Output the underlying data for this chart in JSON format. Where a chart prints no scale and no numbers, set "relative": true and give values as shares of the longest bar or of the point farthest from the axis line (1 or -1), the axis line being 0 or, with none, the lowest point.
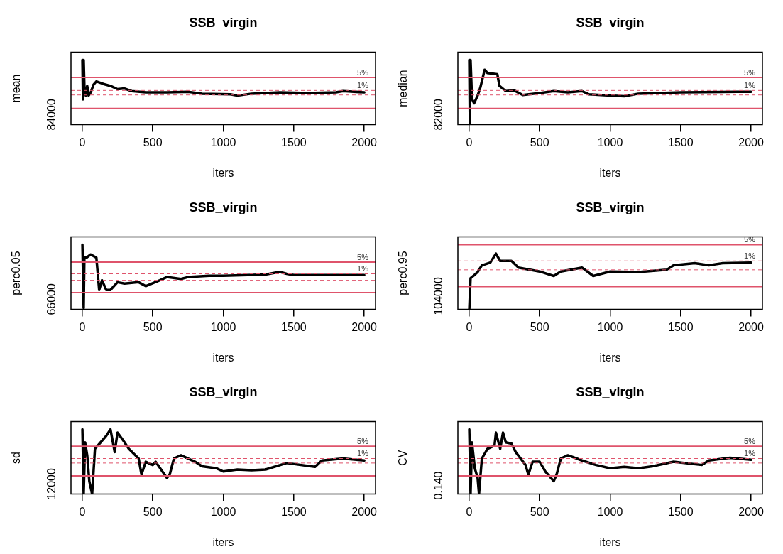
{
  "chart_data": [
    {
      "type": "line",
      "title": "SSB_virgin",
      "xlabel": "iters",
      "ylabel": "mean",
      "relative": true,
      "legend": false,
      "marker": "none",
      "line_style": "solid",
      "xlim": [
        -80,
        2080
      ],
      "xticks": [
        0,
        500,
        1000,
        1500,
        2000
      ],
      "annotations": [
        "84000",
        "5%",
        "1%"
      ],
      "x": [
        1,
        5,
        10,
        15,
        25,
        35,
        45,
        60,
        80,
        100,
        150,
        200,
        250,
        300,
        350,
        450,
        600,
        750,
        850,
        1050,
        1100,
        1200,
        1400,
        1600,
        1800,
        1850,
        2000
      ],
      "series": [
        {
          "color": "#000000",
          "values": [
            1,
            0.39,
            1,
            0.6,
            0.45,
            0.6,
            0.45,
            0.5,
            0.62,
            0.67,
            0.63,
            0.6,
            0.55,
            0.56,
            0.52,
            0.5,
            0.5,
            0.51,
            0.48,
            0.47,
            0.45,
            0.48,
            0.5,
            0.49,
            0.5,
            0.52,
            0.5
          ]
        }
      ],
      "ref_lines": [
        {
          "axis": "y",
          "value": 0.73,
          "color": "#df536b",
          "line_style": "solid"
        },
        {
          "axis": "y",
          "value": 0.53,
          "color": "#df536b",
          "line_style": "dashed"
        },
        {
          "axis": "y",
          "value": 0.25,
          "color": "#df536b",
          "line_style": "solid"
        },
        {
          "axis": "y",
          "value": 0.46,
          "color": "#df536b",
          "line_style": "dashed"
        }
      ]
    },
    {
      "type": "line",
      "title": "SSB_virgin",
      "xlabel": "iters",
      "ylabel": "median",
      "relative": true,
      "legend": false,
      "marker": "none",
      "line_style": "solid",
      "xlim": [
        -80,
        2080
      ],
      "xticks": [
        0,
        500,
        1000,
        1500,
        2000
      ],
      "annotations": [
        "82000",
        "5%",
        "1%"
      ],
      "x": [
        1,
        5,
        10,
        20,
        35,
        60,
        80,
        110,
        130,
        200,
        215,
        260,
        320,
        380,
        500,
        600,
        700,
        800,
        850,
        1000,
        1100,
        1200,
        1500,
        1900,
        2000
      ],
      "series": [
        {
          "color": "#000000",
          "values": [
            1,
            0,
            1,
            0.4,
            0.33,
            0.45,
            0.58,
            0.85,
            0.8,
            0.78,
            0.6,
            0.52,
            0.53,
            0.46,
            0.49,
            0.52,
            0.5,
            0.52,
            0.47,
            0.45,
            0.44,
            0.48,
            0.5,
            0.51,
            0.51
          ]
        }
      ],
      "ref_lines": [
        {
          "axis": "y",
          "value": 0.73,
          "color": "#df536b",
          "line_style": "solid"
        },
        {
          "axis": "y",
          "value": 0.53,
          "color": "#df536b",
          "line_style": "dashed"
        },
        {
          "axis": "y",
          "value": 0.25,
          "color": "#df536b",
          "line_style": "solid"
        },
        {
          "axis": "y",
          "value": 0.46,
          "color": "#df536b",
          "line_style": "dashed"
        }
      ]
    },
    {
      "type": "line",
      "title": "SSB_virgin",
      "xlabel": "iters",
      "ylabel": "perc0.05",
      "relative": true,
      "legend": false,
      "marker": "none",
      "line_style": "solid",
      "xlim": [
        -80,
        2080
      ],
      "xticks": [
        0,
        500,
        1000,
        1500,
        2000
      ],
      "annotations": [
        "66000",
        "5%",
        "1%"
      ],
      "x": [
        1,
        10,
        15,
        30,
        60,
        100,
        120,
        140,
        170,
        200,
        250,
        300,
        400,
        450,
        550,
        600,
        700,
        750,
        900,
        1000,
        1300,
        1400,
        1450,
        1500,
        2000
      ],
      "series": [
        {
          "color": "#000000",
          "values": [
            1,
            0.02,
            0.8,
            0.8,
            0.85,
            0.8,
            0.3,
            0.45,
            0.3,
            0.3,
            0.42,
            0.4,
            0.42,
            0.36,
            0.45,
            0.5,
            0.47,
            0.5,
            0.52,
            0.52,
            0.54,
            0.58,
            0.55,
            0.53,
            0.53
          ]
        }
      ],
      "ref_lines": [
        {
          "axis": "y",
          "value": 0.73,
          "color": "#df536b",
          "line_style": "solid"
        },
        {
          "axis": "y",
          "value": 0.55,
          "color": "#df536b",
          "line_style": "dashed"
        },
        {
          "axis": "y",
          "value": 0.26,
          "color": "#df536b",
          "line_style": "solid"
        },
        {
          "axis": "y",
          "value": 0.45,
          "color": "#df536b",
          "line_style": "dashed"
        }
      ]
    },
    {
      "type": "line",
      "title": "SSB_virgin",
      "xlabel": "iters",
      "ylabel": "perc0.95",
      "relative": true,
      "legend": false,
      "marker": "none",
      "line_style": "solid",
      "xlim": [
        -80,
        2080
      ],
      "xticks": [
        0,
        500,
        1000,
        1500,
        2000
      ],
      "annotations": [
        "104000",
        "5%",
        "1%"
      ],
      "x": [
        1,
        10,
        30,
        60,
        90,
        150,
        190,
        220,
        300,
        350,
        500,
        600,
        650,
        800,
        880,
        1000,
        1200,
        1400,
        1450,
        1600,
        1700,
        1800,
        2000
      ],
      "series": [
        {
          "color": "#000000",
          "values": [
            0,
            0.56,
            0.6,
            0.67,
            0.79,
            0.84,
            1,
            0.87,
            0.87,
            0.75,
            0.68,
            0.6,
            0.68,
            0.75,
            0.6,
            0.68,
            0.67,
            0.71,
            0.79,
            0.83,
            0.79,
            0.83,
            0.84
          ]
        }
      ],
      "ref_lines": [
        {
          "axis": "y",
          "value": 1.16,
          "color": "#df536b",
          "line_style": "solid"
        },
        {
          "axis": "y",
          "value": 0.87,
          "color": "#df536b",
          "line_style": "dashed"
        },
        {
          "axis": "y",
          "value": 0.41,
          "color": "#df536b",
          "line_style": "solid"
        },
        {
          "axis": "y",
          "value": 0.71,
          "color": "#df536b",
          "line_style": "dashed"
        }
      ]
    },
    {
      "type": "line",
      "title": "SSB_virgin",
      "xlabel": "iters",
      "ylabel": "sd",
      "relative": true,
      "legend": false,
      "marker": "none",
      "line_style": "solid",
      "xlim": [
        -80,
        2080
      ],
      "xticks": [
        0,
        500,
        1000,
        1500,
        2000
      ],
      "annotations": [
        "12000",
        "5%",
        "1%"
      ],
      "x": [
        1,
        10,
        20,
        35,
        50,
        70,
        90,
        130,
        170,
        200,
        230,
        250,
        300,
        330,
        400,
        420,
        450,
        500,
        520,
        600,
        620,
        650,
        700,
        800,
        850,
        950,
        1000,
        1100,
        1200,
        1300,
        1450,
        1650,
        1700,
        1850,
        2000
      ],
      "series": [
        {
          "color": "#000000",
          "values": [
            1,
            0,
            0.8,
            0.6,
            0.2,
            0,
            0.7,
            0.8,
            0.9,
            1,
            0.65,
            0.95,
            0.8,
            0.7,
            0.55,
            0.3,
            0.5,
            0.45,
            0.5,
            0.25,
            0.3,
            0.55,
            0.6,
            0.5,
            0.43,
            0.4,
            0.35,
            0.38,
            0.37,
            0.38,
            0.48,
            0.42,
            0.52,
            0.55,
            0.52
          ]
        }
      ],
      "ref_lines": [
        {
          "axis": "y",
          "value": 0.74,
          "color": "#df536b",
          "line_style": "solid"
        },
        {
          "axis": "y",
          "value": 0.55,
          "color": "#df536b",
          "line_style": "dashed"
        },
        {
          "axis": "y",
          "value": 0.28,
          "color": "#df536b",
          "line_style": "solid"
        },
        {
          "axis": "y",
          "value": 0.48,
          "color": "#df536b",
          "line_style": "dashed"
        }
      ]
    },
    {
      "type": "line",
      "title": "SSB_virgin",
      "xlabel": "iters",
      "ylabel": "CV",
      "relative": true,
      "legend": false,
      "marker": "none",
      "line_style": "solid",
      "xlim": [
        -80,
        2080
      ],
      "xticks": [
        0,
        500,
        1000,
        1500,
        2000
      ],
      "annotations": [
        "0.140",
        "5%",
        "1%"
      ],
      "x": [
        1,
        10,
        20,
        40,
        60,
        70,
        90,
        130,
        180,
        190,
        220,
        240,
        260,
        300,
        330,
        400,
        420,
        450,
        500,
        540,
        600,
        620,
        650,
        700,
        800,
        900,
        1000,
        1100,
        1200,
        1300,
        1450,
        1650,
        1700,
        1850,
        2000
      ],
      "series": [
        {
          "color": "#000000",
          "values": [
            1,
            0,
            0.8,
            0.4,
            0.25,
            0,
            0.55,
            0.7,
            0.75,
            0.95,
            0.7,
            0.95,
            0.8,
            0.78,
            0.65,
            0.45,
            0.3,
            0.5,
            0.5,
            0.35,
            0.2,
            0.3,
            0.55,
            0.6,
            0.52,
            0.45,
            0.4,
            0.42,
            0.4,
            0.43,
            0.5,
            0.45,
            0.52,
            0.56,
            0.53
          ]
        }
      ],
      "ref_lines": [
        {
          "axis": "y",
          "value": 0.74,
          "color": "#df536b",
          "line_style": "solid"
        },
        {
          "axis": "y",
          "value": 0.55,
          "color": "#df536b",
          "line_style": "dashed"
        },
        {
          "axis": "y",
          "value": 0.28,
          "color": "#df536b",
          "line_style": "solid"
        },
        {
          "axis": "y",
          "value": 0.48,
          "color": "#df536b",
          "line_style": "dashed"
        }
      ]
    }
  ]
}
